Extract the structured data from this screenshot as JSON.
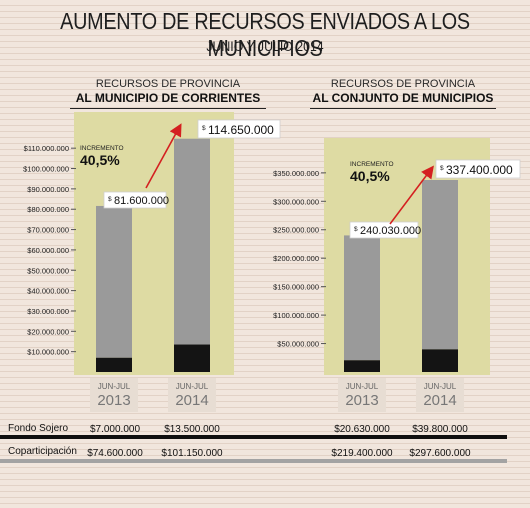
{
  "header": {
    "title": "AUMENTO DE RECURSOS ENVIADOS A LOS MUNICIPIOS",
    "subtitle": "JUNIO Y JULIO 2014"
  },
  "colors": {
    "background": "#f1e6dd",
    "panel": "#dedba3",
    "bar_coparticipacion": "#9a9a9a",
    "bar_fondo_sojero": "#141414",
    "arrow": "#d42020",
    "label_box": "#ffffff"
  },
  "chart_data": [
    {
      "type": "bar",
      "stacked": true,
      "title_line1": "RECURSOS DE PROVINCIA",
      "title_line2": "AL MUNICIPIO DE CORRIENTES",
      "categories": [
        "JUN-JUL|2013",
        "JUN-JUL|2014"
      ],
      "series": [
        {
          "name": "Fondo Sojero",
          "values": [
            7000000,
            13500000
          ]
        },
        {
          "name": "Coparticipación",
          "values": [
            74600000,
            101150000
          ]
        }
      ],
      "totals": [
        "81.600.000",
        "114.650.000"
      ],
      "currency": "$",
      "ylim": [
        0,
        115000000
      ],
      "yticks": [
        10000000,
        20000000,
        30000000,
        40000000,
        50000000,
        60000000,
        70000000,
        80000000,
        90000000,
        100000000,
        110000000
      ],
      "ytick_labels": [
        "$10.000.000",
        "$20.000.000",
        "$30.000.000",
        "$40.000.000",
        "$50.000.000",
        "$60.000.000",
        "$70.000.000",
        "$80.000.000",
        "$90.000.000",
        "$100.000.000",
        "$110.000.000"
      ],
      "annotation": {
        "label": "INCREMENTO",
        "value": "40,5%"
      }
    },
    {
      "type": "bar",
      "stacked": true,
      "title_line1": "RECURSOS DE PROVINCIA",
      "title_line2": "AL CONJUNTO DE MUNICIPIOS",
      "categories": [
        "JUN-JUL|2013",
        "JUN-JUL|2014"
      ],
      "series": [
        {
          "name": "Fondo Sojero",
          "values": [
            20630000,
            39800000
          ]
        },
        {
          "name": "Coparticipación",
          "values": [
            219400000,
            297600000
          ]
        }
      ],
      "totals": [
        "240.030.000",
        "337.400.000"
      ],
      "currency": "$",
      "ylim": [
        0,
        355000000
      ],
      "yticks": [
        50000000,
        100000000,
        150000000,
        200000000,
        250000000,
        300000000,
        350000000
      ],
      "ytick_labels": [
        "$50.000.000",
        "$100.000.000",
        "$150.000.000",
        "$200.000.000",
        "$250.000.000",
        "$300.000.000",
        "$350.000.000"
      ],
      "annotation": {
        "label": "INCREMENTO",
        "value": "40,5%"
      }
    }
  ],
  "table": {
    "rows": [
      {
        "label": "Fondo Sojero",
        "values": [
          "$7.000.000",
          "$13.500.000",
          "$20.630.000",
          "$39.800.000"
        ]
      },
      {
        "label": "Coparticipación",
        "values": [
          "$74.600.000",
          "$101.150.000",
          "$219.400.000",
          "$297.600.000"
        ]
      }
    ]
  }
}
